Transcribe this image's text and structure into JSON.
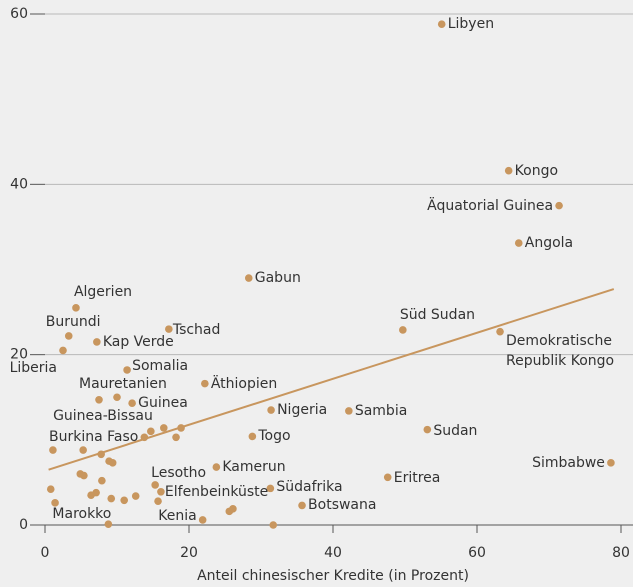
{
  "chart_data": {
    "type": "scatter",
    "color": "#c8965e",
    "xlabel": "Anteil chinesischer Kredite (in Prozent)",
    "x": [
      55.1,
      64.4,
      71.4,
      65.8,
      28.3,
      49.7,
      63.2,
      4.3,
      3.3,
      7.2,
      2.5,
      17.2,
      11.4,
      10.0,
      22.2,
      12.1,
      14.7,
      13.8,
      31.4,
      28.8,
      42.2,
      53.1,
      78.6,
      47.6,
      23.8,
      15.3,
      16.1,
      31.3,
      35.7,
      21.9,
      8.8,
      7.5,
      16.5,
      18.9,
      18.2,
      1.1,
      5.3,
      7.8,
      8.9,
      9.4,
      4.9,
      5.4,
      0.8,
      1.4,
      7.9,
      6.4,
      7.1,
      9.2,
      11.0,
      12.6,
      15.7,
      25.6,
      26.1,
      31.7
    ],
    "values": [
      58.8,
      41.6,
      37.5,
      33.1,
      29.0,
      22.9,
      22.7,
      25.5,
      22.2,
      21.5,
      20.5,
      23.0,
      18.2,
      15.0,
      16.6,
      14.3,
      11.0,
      10.3,
      13.5,
      10.4,
      13.4,
      11.2,
      7.3,
      5.6,
      6.8,
      4.7,
      3.9,
      4.3,
      2.3,
      0.6,
      0.1,
      14.7,
      11.4,
      11.4,
      10.3,
      8.8,
      8.8,
      8.3,
      7.5,
      7.3,
      6.0,
      5.8,
      4.2,
      2.6,
      5.2,
      3.5,
      3.8,
      3.1,
      2.9,
      3.4,
      2.8,
      1.6,
      1.9,
      0.0
    ],
    "labels": [
      "Libyen",
      "Kongo",
      "Äquatorial Guinea",
      "Angola",
      "Gabun",
      "Süd Sudan",
      "Demokratische Republik Kongo",
      "Algerien",
      "Burundi",
      "Kap Verde",
      "Liberia",
      "Tschad",
      "Somalia",
      "Mauretanien",
      "Äthiopien",
      "Guinea",
      "Guinea-Bissau",
      "Burkina Faso",
      "Nigeria",
      "Togo",
      "Sambia",
      "Sudan",
      "Simbabwe",
      "Eritrea",
      "Kamerun",
      "Lesotho",
      "Elfenbeinküste",
      "Südafrika",
      "Botswana",
      "Kenia",
      "Marokko",
      null,
      null,
      null,
      null,
      null,
      null,
      null,
      null,
      null,
      null,
      null,
      null,
      null,
      null,
      null,
      null,
      null,
      null,
      null,
      null,
      null,
      null,
      null
    ],
    "trendline": {
      "x": [
        0.5,
        79
      ],
      "values": [
        6.5,
        27.7
      ]
    },
    "xlim": [
      0,
      80
    ],
    "xticks": [
      0,
      20,
      40,
      60,
      80
    ],
    "ylim": [
      0,
      60
    ],
    "yticks": [
      0,
      20,
      40,
      60
    ],
    "grid": true
  }
}
